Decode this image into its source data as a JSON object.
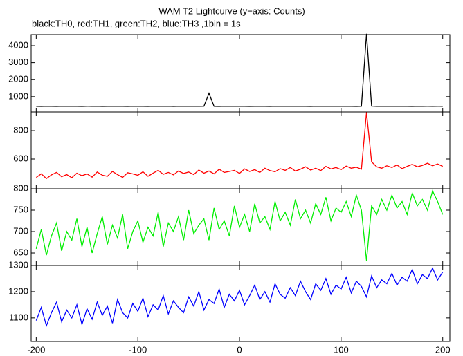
{
  "chart_data": [
    {
      "type": "line",
      "title": "WAM T2 Lightcurve (y−axis: Counts)",
      "subtitle": "black:TH0, red:TH1, green:TH2, blue:TH3 ,1bin = 1s",
      "color": "#000000",
      "x": [
        -200,
        -195,
        -190,
        -185,
        -180,
        -175,
        -170,
        -165,
        -160,
        -155,
        -150,
        -145,
        -140,
        -135,
        -130,
        -125,
        -120,
        -115,
        -110,
        -105,
        -100,
        -95,
        -90,
        -85,
        -80,
        -75,
        -70,
        -65,
        -60,
        -55,
        -50,
        -45,
        -40,
        -35,
        -30,
        -25,
        -20,
        -15,
        -10,
        -5,
        0,
        5,
        10,
        15,
        20,
        25,
        30,
        35,
        40,
        45,
        50,
        55,
        60,
        65,
        70,
        75,
        80,
        85,
        90,
        95,
        100,
        105,
        110,
        115,
        120,
        125,
        130,
        135,
        140,
        145,
        150,
        155,
        160,
        165,
        170,
        175,
        180,
        185,
        190,
        195,
        200
      ],
      "values": [
        432,
        428,
        435,
        430,
        426,
        438,
        431,
        429,
        433,
        427,
        436,
        430,
        434,
        428,
        431,
        437,
        429,
        433,
        426,
        435,
        430,
        432,
        428,
        436,
        431,
        429,
        434,
        427,
        433,
        430,
        438,
        429,
        432,
        435,
        1200,
        431,
        428,
        434,
        430,
        436,
        429,
        433,
        427,
        432,
        435,
        430,
        428,
        437,
        431,
        434,
        429,
        433,
        436,
        430,
        428,
        435,
        432,
        429,
        434,
        431,
        437,
        430,
        433,
        428,
        436,
        4700,
        445,
        432,
        429,
        435,
        431,
        438,
        430,
        433,
        428,
        436,
        432,
        434,
        430,
        437,
        433
      ],
      "xlim": [
        -205,
        207
      ],
      "xticks": [
        -200,
        -100,
        0,
        100,
        200
      ],
      "ylim": [
        100,
        4650
      ],
      "yticks": [
        1000,
        2000,
        3000,
        4000
      ]
    },
    {
      "type": "line",
      "color": "#ff0000",
      "x": [
        -200,
        -195,
        -190,
        -185,
        -180,
        -175,
        -170,
        -165,
        -160,
        -155,
        -150,
        -145,
        -140,
        -135,
        -130,
        -125,
        -120,
        -115,
        -110,
        -105,
        -100,
        -95,
        -90,
        -85,
        -80,
        -75,
        -70,
        -65,
        -60,
        -55,
        -50,
        -45,
        -40,
        -35,
        -30,
        -25,
        -20,
        -15,
        -10,
        -5,
        0,
        5,
        10,
        15,
        20,
        25,
        30,
        35,
        40,
        45,
        50,
        55,
        60,
        65,
        70,
        75,
        80,
        85,
        90,
        95,
        100,
        105,
        110,
        115,
        120,
        125,
        130,
        135,
        140,
        145,
        150,
        155,
        160,
        165,
        170,
        175,
        180,
        185,
        190,
        195,
        200
      ],
      "values": [
        470,
        495,
        462,
        488,
        505,
        475,
        490,
        468,
        500,
        482,
        495,
        472,
        508,
        486,
        478,
        512,
        490,
        470,
        503,
        495,
        485,
        510,
        478,
        500,
        520,
        492,
        505,
        488,
        515,
        498,
        508,
        490,
        522,
        500,
        515,
        495,
        528,
        505,
        512,
        520,
        498,
        530,
        512,
        525,
        505,
        535,
        518,
        510,
        532,
        520,
        540,
        515,
        528,
        545,
        522,
        535,
        518,
        548,
        530,
        540,
        525,
        550,
        535,
        542,
        528,
        930,
        580,
        545,
        535,
        552,
        540,
        558,
        532,
        548,
        562,
        545,
        555,
        570,
        552,
        565,
        548
      ],
      "xlim": [
        -205,
        207
      ],
      "xticks": [
        -200,
        -100,
        0,
        100,
        200
      ],
      "ylim": [
        390,
        932
      ],
      "yticks": [
        600,
        800
      ]
    },
    {
      "type": "line",
      "color": "#00ee00",
      "x": [
        -200,
        -195,
        -190,
        -185,
        -180,
        -175,
        -170,
        -165,
        -160,
        -155,
        -150,
        -145,
        -140,
        -135,
        -130,
        -125,
        -120,
        -115,
        -110,
        -105,
        -100,
        -95,
        -90,
        -85,
        -80,
        -75,
        -70,
        -65,
        -60,
        -55,
        -50,
        -45,
        -40,
        -35,
        -30,
        -25,
        -20,
        -15,
        -10,
        -5,
        0,
        5,
        10,
        15,
        20,
        25,
        30,
        35,
        40,
        45,
        50,
        55,
        60,
        65,
        70,
        75,
        80,
        85,
        90,
        95,
        100,
        105,
        110,
        115,
        120,
        125,
        130,
        135,
        140,
        145,
        150,
        155,
        160,
        165,
        170,
        175,
        180,
        185,
        190,
        195,
        200
      ],
      "values": [
        660,
        705,
        645,
        690,
        720,
        655,
        700,
        680,
        730,
        665,
        710,
        650,
        695,
        735,
        670,
        715,
        685,
        740,
        660,
        700,
        725,
        675,
        710,
        690,
        745,
        665,
        720,
        700,
        735,
        680,
        750,
        695,
        715,
        730,
        680,
        755,
        705,
        725,
        690,
        760,
        710,
        740,
        700,
        765,
        720,
        735,
        705,
        770,
        725,
        745,
        715,
        775,
        730,
        750,
        720,
        765,
        740,
        780,
        725,
        755,
        745,
        770,
        735,
        785,
        750,
        632,
        760,
        740,
        775,
        750,
        785,
        755,
        770,
        740,
        790,
        760,
        775,
        750,
        795,
        770,
        740
      ],
      "xlim": [
        -205,
        207
      ],
      "xticks": [
        -200,
        -100,
        0,
        100,
        200
      ],
      "ylim": [
        621,
        800
      ],
      "yticks": [
        650,
        700,
        750,
        800
      ]
    },
    {
      "type": "line",
      "color": "#0000ff",
      "x": [
        -200,
        -195,
        -190,
        -185,
        -180,
        -175,
        -170,
        -165,
        -160,
        -155,
        -150,
        -145,
        -140,
        -135,
        -130,
        -125,
        -120,
        -115,
        -110,
        -105,
        -100,
        -95,
        -90,
        -85,
        -80,
        -75,
        -70,
        -65,
        -60,
        -55,
        -50,
        -45,
        -40,
        -35,
        -30,
        -25,
        -20,
        -15,
        -10,
        -5,
        0,
        5,
        10,
        15,
        20,
        25,
        30,
        35,
        40,
        45,
        50,
        55,
        60,
        65,
        70,
        75,
        80,
        85,
        90,
        95,
        100,
        105,
        110,
        115,
        120,
        125,
        130,
        135,
        140,
        145,
        150,
        155,
        160,
        165,
        170,
        175,
        180,
        185,
        190,
        195,
        200
      ],
      "values": [
        1090,
        1140,
        1070,
        1120,
        1160,
        1085,
        1130,
        1100,
        1150,
        1075,
        1135,
        1095,
        1160,
        1110,
        1145,
        1080,
        1170,
        1120,
        1100,
        1155,
        1125,
        1175,
        1105,
        1150,
        1130,
        1185,
        1115,
        1165,
        1140,
        1120,
        1180,
        1145,
        1200,
        1130,
        1170,
        1155,
        1210,
        1140,
        1190,
        1165,
        1205,
        1150,
        1185,
        1225,
        1170,
        1200,
        1160,
        1230,
        1190,
        1175,
        1215,
        1185,
        1240,
        1200,
        1170,
        1230,
        1205,
        1250,
        1190,
        1225,
        1210,
        1255,
        1195,
        1240,
        1220,
        1180,
        1260,
        1215,
        1245,
        1230,
        1270,
        1225,
        1255,
        1240,
        1285,
        1230,
        1265,
        1250,
        1290,
        1245,
        1275
      ],
      "xlim": [
        -205,
        207
      ],
      "xticks": [
        -200,
        -100,
        0,
        100,
        200
      ],
      "ylim": [
        1010,
        1300
      ],
      "yticks": [
        1100,
        1200,
        1300
      ]
    }
  ]
}
